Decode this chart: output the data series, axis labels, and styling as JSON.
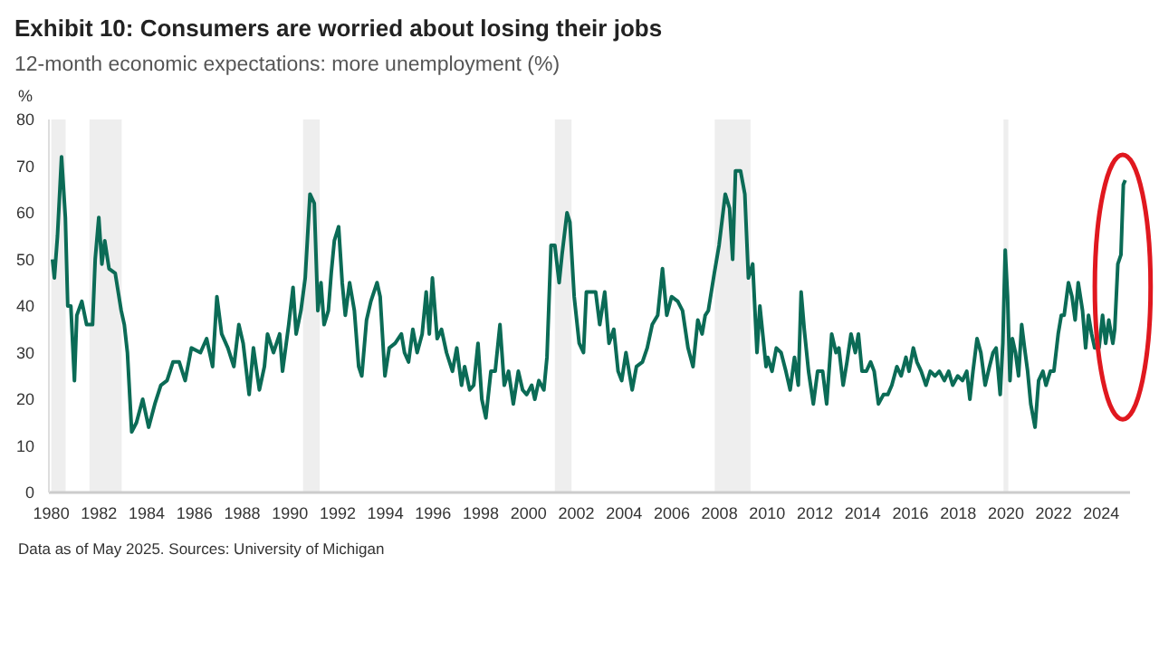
{
  "chart_data": {
    "type": "line",
    "title": "Exhibit 10: Consumers are worried about losing their jobs",
    "subtitle": "12-month economic expectations: more unemployment (%)",
    "ylabel": "%",
    "annotations": [
      "Data as of May 2025. Sources: University of Michigan"
    ],
    "xlim": [
      1979.9,
      2025.2
    ],
    "xticks": [
      1980,
      1982,
      1984,
      1986,
      1988,
      1990,
      1992,
      1994,
      1996,
      1998,
      2000,
      2002,
      2004,
      2006,
      2008,
      2010,
      2012,
      2014,
      2016,
      2018,
      2020,
      2022,
      2024
    ],
    "ylim": [
      0,
      80
    ],
    "yticks": [
      0,
      10,
      20,
      30,
      40,
      50,
      60,
      70,
      80
    ],
    "grid": false,
    "bands": [
      {
        "axis": "x",
        "from": 1980.0,
        "to": 1980.6,
        "color": "#eeeeee"
      },
      {
        "axis": "x",
        "from": 1981.6,
        "to": 1982.95,
        "color": "#eeeeee"
      },
      {
        "axis": "x",
        "from": 1990.55,
        "to": 1991.25,
        "color": "#eeeeee"
      },
      {
        "axis": "x",
        "from": 2001.1,
        "to": 2001.8,
        "color": "#eeeeee"
      },
      {
        "axis": "x",
        "from": 2007.8,
        "to": 2009.3,
        "color": "#eeeeee"
      },
      {
        "axis": "x",
        "from": 2019.9,
        "to": 2020.1,
        "color": "#eeeeee"
      }
    ],
    "series": [
      {
        "color": "#0b6b56",
        "x": [
          1980.05,
          1980.13,
          1980.26,
          1980.43,
          1980.59,
          1980.69,
          1980.82,
          1980.97,
          1981.07,
          1981.28,
          1981.48,
          1981.73,
          1981.84,
          1981.99,
          1982.12,
          1982.24,
          1982.42,
          1982.68,
          1982.93,
          1983.06,
          1983.19,
          1983.37,
          1983.57,
          1983.83,
          1984.08,
          1984.34,
          1984.59,
          1984.85,
          1985.1,
          1985.36,
          1985.61,
          1985.87,
          1986.25,
          1986.51,
          1986.76,
          1986.94,
          1987.14,
          1987.4,
          1987.65,
          1987.86,
          1988.04,
          1988.29,
          1988.47,
          1988.72,
          1988.93,
          1989.06,
          1989.31,
          1989.57,
          1989.69,
          1989.95,
          1990.13,
          1990.26,
          1990.46,
          1990.64,
          1990.84,
          1991.02,
          1991.17,
          1991.3,
          1991.43,
          1991.61,
          1991.73,
          1991.86,
          1992.04,
          1992.19,
          1992.32,
          1992.5,
          1992.7,
          1992.88,
          1993.01,
          1993.21,
          1993.39,
          1993.65,
          1993.78,
          1993.98,
          1994.16,
          1994.41,
          1994.67,
          1994.8,
          1994.97,
          1995.15,
          1995.33,
          1995.54,
          1995.71,
          1995.84,
          1995.97,
          1996.17,
          1996.35,
          1996.56,
          1996.81,
          1996.99,
          1997.19,
          1997.32,
          1997.53,
          1997.7,
          1997.88,
          1998.04,
          1998.21,
          1998.42,
          1998.6,
          1998.8,
          1998.98,
          1999.16,
          1999.36,
          1999.57,
          1999.75,
          1999.92,
          2000.13,
          2000.26,
          2000.43,
          2000.64,
          2000.77,
          2000.94,
          2001.1,
          2001.28,
          2001.4,
          2001.61,
          2001.73,
          2001.91,
          2002.12,
          2002.3,
          2002.42,
          2002.63,
          2002.81,
          2002.98,
          2003.19,
          2003.37,
          2003.57,
          2003.75,
          2003.9,
          2004.08,
          2004.34,
          2004.52,
          2004.77,
          2004.97,
          2005.18,
          2005.41,
          2005.61,
          2005.79,
          2005.99,
          2006.25,
          2006.45,
          2006.68,
          2006.89,
          2007.09,
          2007.27,
          2007.4,
          2007.53,
          2007.78,
          2007.98,
          2008.24,
          2008.42,
          2008.55,
          2008.67,
          2008.88,
          2009.06,
          2009.21,
          2009.39,
          2009.57,
          2009.69,
          2009.95,
          2010.02,
          2010.2,
          2010.38,
          2010.58,
          2010.78,
          2010.96,
          2011.14,
          2011.3,
          2011.42,
          2011.55,
          2011.73,
          2011.93,
          2012.11,
          2012.32,
          2012.49,
          2012.7,
          2012.88,
          2013.0,
          2013.18,
          2013.34,
          2013.51,
          2013.69,
          2013.82,
          2013.97,
          2014.15,
          2014.33,
          2014.48,
          2014.66,
          2014.87,
          2015.05,
          2015.22,
          2015.43,
          2015.61,
          2015.81,
          2015.94,
          2016.12,
          2016.27,
          2016.45,
          2016.65,
          2016.83,
          2017.03,
          2017.21,
          2017.42,
          2017.6,
          2017.77,
          2017.98,
          2018.18,
          2018.36,
          2018.49,
          2018.62,
          2018.79,
          2018.95,
          2019.13,
          2019.31,
          2019.46,
          2019.59,
          2019.76,
          2019.87,
          2019.97,
          2020.07,
          2020.17,
          2020.27,
          2020.4,
          2020.53,
          2020.66,
          2020.78,
          2020.91,
          2021.04,
          2021.22,
          2021.37,
          2021.55,
          2021.68,
          2021.86,
          2022.01,
          2022.19,
          2022.32,
          2022.44,
          2022.62,
          2022.77,
          2022.9,
          2023.03,
          2023.21,
          2023.34,
          2023.46,
          2023.59,
          2023.72,
          2023.9,
          2024.05,
          2024.18,
          2024.31,
          2024.48,
          2024.56,
          2024.69,
          2024.82,
          2024.92,
          2025.0
        ],
        "values": [
          50,
          46,
          55,
          72,
          59,
          40,
          40,
          24,
          38,
          41,
          36,
          36,
          50,
          59,
          49,
          54,
          48,
          47,
          39,
          36,
          30,
          13,
          15,
          20,
          14,
          19,
          23,
          24,
          28,
          28,
          24,
          31,
          30,
          33,
          27,
          42,
          34,
          31,
          27,
          36,
          32,
          21,
          31,
          22,
          27,
          34,
          30,
          34,
          26,
          36,
          44,
          34,
          39,
          46,
          64,
          62,
          39,
          45,
          36,
          39,
          47,
          54,
          57,
          45,
          38,
          45,
          39,
          27,
          25,
          37,
          41,
          45,
          42,
          25,
          31,
          32,
          34,
          30,
          28,
          35,
          30,
          34,
          43,
          34,
          46,
          33,
          35,
          30,
          26,
          31,
          23,
          27,
          22,
          23,
          32,
          20,
          16,
          26,
          26,
          36,
          23,
          26,
          19,
          26,
          22,
          21,
          23,
          20,
          24,
          22,
          29,
          53,
          53,
          45,
          51,
          60,
          58,
          42,
          32,
          30,
          43,
          43,
          43,
          36,
          43,
          32,
          35,
          26,
          24,
          30,
          22,
          27,
          28,
          31,
          36,
          38,
          48,
          38,
          42,
          41,
          39,
          31,
          27,
          37,
          34,
          38,
          39,
          47,
          53,
          64,
          61,
          50,
          69,
          69,
          64,
          46,
          49,
          30,
          40,
          27,
          29,
          26,
          31,
          30,
          26,
          22,
          29,
          23,
          43,
          35,
          26,
          19,
          26,
          26,
          19,
          34,
          30,
          31,
          23,
          28,
          34,
          30,
          34,
          26,
          26,
          28,
          26,
          19,
          21,
          21,
          23,
          27,
          25,
          29,
          26,
          31,
          28,
          26,
          23,
          26,
          25,
          26,
          24,
          26,
          23,
          25,
          24,
          26,
          20,
          26,
          33,
          30,
          23,
          27,
          30,
          31,
          21,
          32,
          52,
          42,
          24,
          33,
          30,
          25,
          36,
          31,
          26,
          19,
          14,
          24,
          26,
          23,
          26,
          26,
          34,
          38,
          38,
          45,
          42,
          37,
          45,
          39,
          31,
          38,
          34,
          31,
          31,
          38,
          32,
          37,
          32,
          35,
          49,
          51,
          66,
          67
        ]
      }
    ]
  }
}
